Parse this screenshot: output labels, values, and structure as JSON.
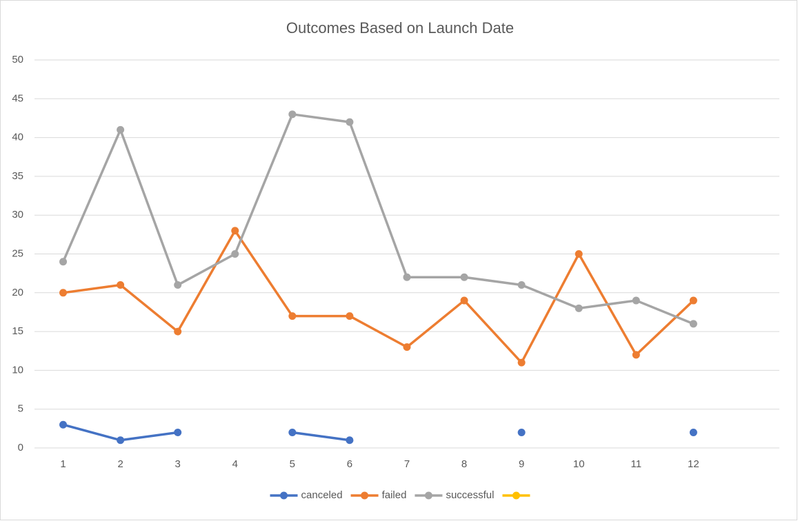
{
  "chart_data": {
    "type": "line",
    "title": "Outcomes Based on Launch Date",
    "categories": [
      "1",
      "2",
      "3",
      "4",
      "5",
      "6",
      "7",
      "8",
      "9",
      "10",
      "11",
      "12",
      null
    ],
    "series": [
      {
        "name": "canceled",
        "color": "#4472c4",
        "values": [
          3,
          1,
          2,
          null,
          2,
          1,
          null,
          null,
          2,
          null,
          null,
          2,
          null
        ]
      },
      {
        "name": "failed",
        "color": "#ed7d31",
        "values": [
          20,
          21,
          15,
          28,
          17,
          17,
          13,
          19,
          11,
          25,
          12,
          19,
          null
        ]
      },
      {
        "name": "successful",
        "color": "#a5a5a5",
        "values": [
          24,
          41,
          21,
          25,
          43,
          42,
          22,
          22,
          21,
          18,
          19,
          16,
          null
        ]
      },
      {
        "color": "#ffc000",
        "values": [
          null,
          null,
          null,
          null,
          null,
          null,
          null,
          null,
          null,
          null,
          null,
          null,
          null
        ]
      }
    ],
    "ylim": [
      0,
      50
    ],
    "yticks": [
      0,
      5,
      10,
      15,
      20,
      25,
      30,
      35,
      40,
      45,
      50
    ],
    "grid": true,
    "legend": "bottom"
  }
}
